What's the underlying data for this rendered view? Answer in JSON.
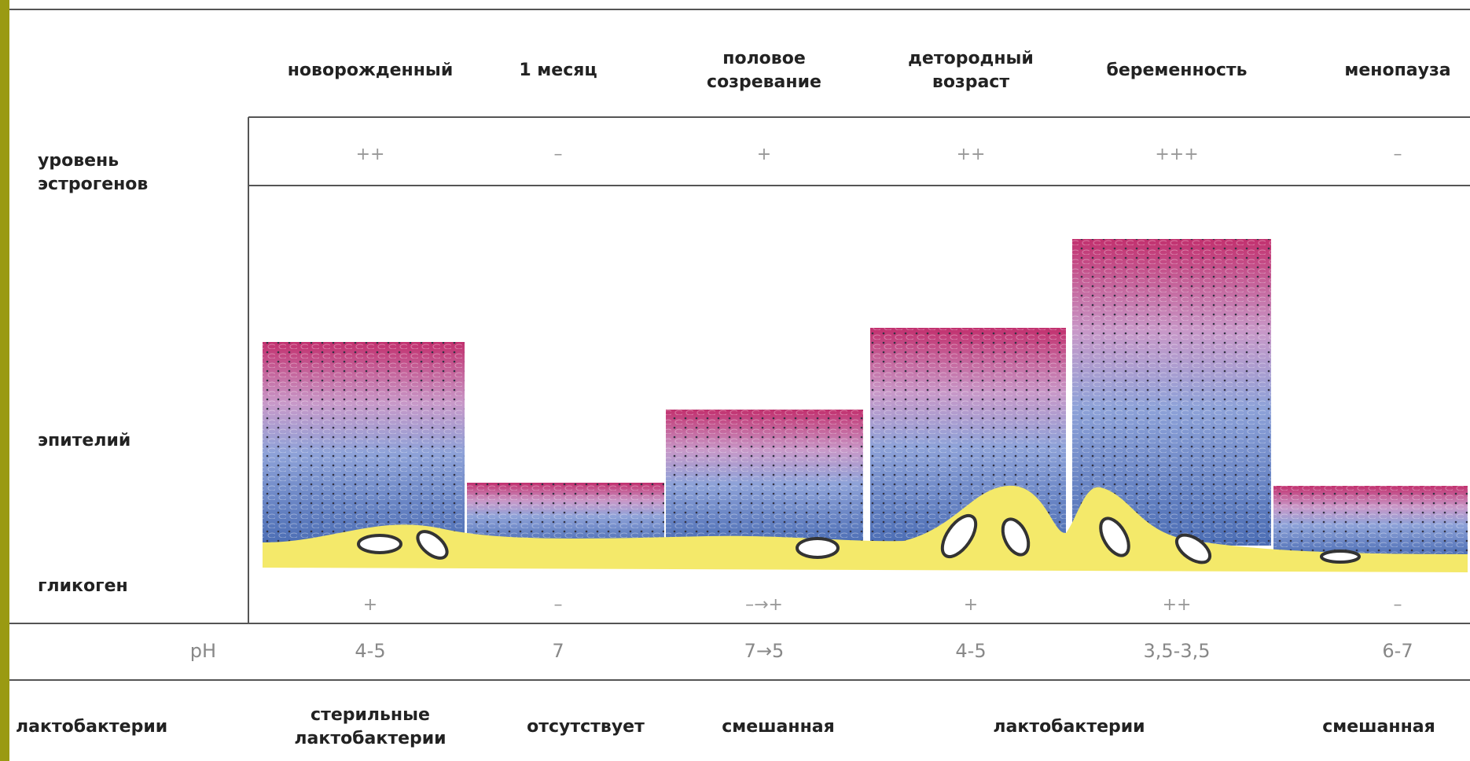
{
  "header": {
    "columns": [
      [
        "новорожденный"
      ],
      [
        "1 месяц"
      ],
      [
        "половое",
        "созревание"
      ],
      [
        "детородный",
        "возраст"
      ],
      [
        "беременность"
      ],
      [
        "менопауза"
      ]
    ]
  },
  "rows": {
    "estrogen": {
      "label": [
        "уровень",
        "эстрогенов"
      ],
      "values": [
        "++",
        "–",
        "+",
        "++",
        "+++",
        "–"
      ]
    },
    "epithelium": {
      "label": "эпителий"
    },
    "glycogen": {
      "label": "гликоген",
      "values": [
        "+",
        "–",
        "–→+",
        "+",
        "++",
        "–"
      ]
    },
    "ph": {
      "label": "pH",
      "values": [
        "4-5",
        "7",
        "7→5",
        "4-5",
        "3,5-3,5",
        "6-7"
      ]
    },
    "bacteria": {
      "label": "лактобактерии",
      "values": [
        [
          "стерильные",
          "лактобактерии"
        ],
        [
          "отсутствует"
        ],
        [
          "смешанная"
        ],
        [
          "лактобактерии"
        ],
        [
          "смешанная"
        ]
      ]
    }
  }
}
